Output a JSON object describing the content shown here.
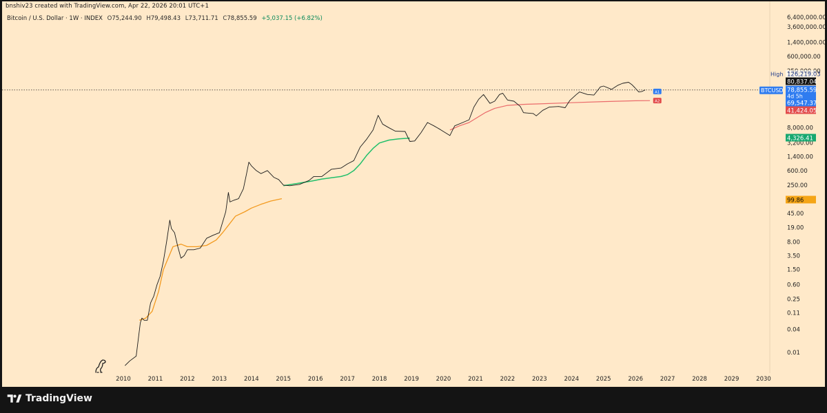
{
  "header": {
    "credit": "bnshiv23 created with TradingView.com, Apr 22, 2026 20:01 UTC+1",
    "symbol_title": "Bitcoin / U.S. Dollar · 1W · INDEX",
    "open_label": "O",
    "open": "75,244.90",
    "high_label": "H",
    "high": "79,498.43",
    "low_label": "L",
    "low": "73,711.71",
    "close_label": "C",
    "close": "78,855.59",
    "change": "+5,037.15 (+6.82%)"
  },
  "footer": {
    "brand": "TradingView"
  },
  "chart_data": {
    "type": "line",
    "title": "Bitcoin / U.S. Dollar · 1W · INDEX",
    "yscale": "log",
    "ylim": [
      0.004,
      6000000
    ],
    "xlim": [
      2009.75,
      2030.3
    ],
    "x_ticks": [
      "2010",
      "2011",
      "2012",
      "2013",
      "2014",
      "2015",
      "2016",
      "2017",
      "2018",
      "2019",
      "2020",
      "2021",
      "2022",
      "2023",
      "2024",
      "2025",
      "2026",
      "2027",
      "2028",
      "2029",
      "2030"
    ],
    "y_ticks": [
      {
        "v": 6400000,
        "label": "6,400,000.00"
      },
      {
        "v": 3600000,
        "label": "3,600,000.00"
      },
      {
        "v": 1400000,
        "label": "1,400,000.00"
      },
      {
        "v": 600000,
        "label": "600,000.00"
      },
      {
        "v": 250000,
        "label": "250,000.00"
      },
      {
        "v": 8000,
        "label": "8,000.00"
      },
      {
        "v": 3200,
        "label": "3,200.00"
      },
      {
        "v": 1400,
        "label": "1,400.00"
      },
      {
        "v": 600,
        "label": "600.00"
      },
      {
        "v": 250,
        "label": "250.00"
      },
      {
        "v": 45,
        "label": "45.00"
      },
      {
        "v": 19,
        "label": "19.00"
      },
      {
        "v": 8,
        "label": "8.00"
      },
      {
        "v": 3.5,
        "label": "3.50"
      },
      {
        "v": 1.5,
        "label": "1.50"
      },
      {
        "v": 0.6,
        "label": "0.60"
      },
      {
        "v": 0.25,
        "label": "0.25"
      },
      {
        "v": 0.11,
        "label": "0.11"
      },
      {
        "v": 0.04,
        "label": "0.04"
      },
      {
        "v": 0.01,
        "label": "0.01"
      }
    ],
    "price_series": {
      "name": "BTCUSD",
      "color": "#1a1a1a",
      "points": [
        [
          2010.05,
          0.0045
        ],
        [
          2010.2,
          0.006
        ],
        [
          2010.4,
          0.008
        ],
        [
          2010.53,
          0.06
        ],
        [
          2010.58,
          0.08
        ],
        [
          2010.65,
          0.07
        ],
        [
          2010.75,
          0.07
        ],
        [
          2010.85,
          0.2
        ],
        [
          2010.95,
          0.3
        ],
        [
          2011.05,
          0.6
        ],
        [
          2011.15,
          1.0
        ],
        [
          2011.25,
          2.5
        ],
        [
          2011.35,
          8
        ],
        [
          2011.45,
          30
        ],
        [
          2011.5,
          18
        ],
        [
          2011.6,
          14
        ],
        [
          2011.7,
          6
        ],
        [
          2011.8,
          3
        ],
        [
          2011.9,
          3.5
        ],
        [
          2012.0,
          5
        ],
        [
          2012.2,
          5
        ],
        [
          2012.4,
          5.5
        ],
        [
          2012.6,
          10
        ],
        [
          2012.8,
          12
        ],
        [
          2013.0,
          14
        ],
        [
          2013.2,
          50
        ],
        [
          2013.28,
          160
        ],
        [
          2013.33,
          90
        ],
        [
          2013.45,
          100
        ],
        [
          2013.6,
          110
        ],
        [
          2013.75,
          200
        ],
        [
          2013.85,
          500
        ],
        [
          2013.92,
          1000
        ],
        [
          2014.0,
          800
        ],
        [
          2014.15,
          600
        ],
        [
          2014.3,
          500
        ],
        [
          2014.5,
          600
        ],
        [
          2014.7,
          400
        ],
        [
          2014.85,
          350
        ],
        [
          2015.0,
          250
        ],
        [
          2015.2,
          240
        ],
        [
          2015.5,
          260
        ],
        [
          2015.8,
          330
        ],
        [
          2015.95,
          420
        ],
        [
          2016.2,
          420
        ],
        [
          2016.5,
          650
        ],
        [
          2016.8,
          700
        ],
        [
          2017.0,
          900
        ],
        [
          2017.2,
          1100
        ],
        [
          2017.4,
          2500
        ],
        [
          2017.6,
          4000
        ],
        [
          2017.8,
          7000
        ],
        [
          2017.96,
          17000
        ],
        [
          2018.1,
          10000
        ],
        [
          2018.3,
          8000
        ],
        [
          2018.5,
          6500
        ],
        [
          2018.8,
          6400
        ],
        [
          2018.95,
          3500
        ],
        [
          2019.1,
          3600
        ],
        [
          2019.3,
          6000
        ],
        [
          2019.5,
          11000
        ],
        [
          2019.7,
          9000
        ],
        [
          2019.9,
          7200
        ],
        [
          2020.2,
          5000
        ],
        [
          2020.35,
          9000
        ],
        [
          2020.6,
          11000
        ],
        [
          2020.8,
          13000
        ],
        [
          2020.95,
          28000
        ],
        [
          2021.1,
          45000
        ],
        [
          2021.25,
          60000
        ],
        [
          2021.45,
          35000
        ],
        [
          2021.6,
          40000
        ],
        [
          2021.75,
          60000
        ],
        [
          2021.85,
          65000
        ],
        [
          2022.0,
          43000
        ],
        [
          2022.2,
          40000
        ],
        [
          2022.4,
          29000
        ],
        [
          2022.5,
          20000
        ],
        [
          2022.8,
          19000
        ],
        [
          2022.9,
          16500
        ],
        [
          2023.1,
          23000
        ],
        [
          2023.3,
          28000
        ],
        [
          2023.6,
          29000
        ],
        [
          2023.8,
          27000
        ],
        [
          2023.95,
          42000
        ],
        [
          2024.15,
          60000
        ],
        [
          2024.25,
          70000
        ],
        [
          2024.5,
          60000
        ],
        [
          2024.7,
          58000
        ],
        [
          2024.9,
          95000
        ],
        [
          2025.0,
          100000
        ],
        [
          2025.25,
          82000
        ],
        [
          2025.45,
          105000
        ],
        [
          2025.6,
          118000
        ],
        [
          2025.78,
          126000
        ],
        [
          2025.88,
          110000
        ],
        [
          2025.98,
          90000
        ],
        [
          2026.1,
          70000
        ],
        [
          2026.2,
          72000
        ],
        [
          2026.3,
          78855
        ]
      ]
    },
    "ma_orange": {
      "color": "#f39a1f",
      "points": [
        [
          2010.5,
          0.07
        ],
        [
          2010.7,
          0.08
        ],
        [
          2010.9,
          0.12
        ],
        [
          2011.1,
          0.4
        ],
        [
          2011.25,
          1.5
        ],
        [
          2011.4,
          3
        ],
        [
          2011.55,
          6
        ],
        [
          2011.8,
          7
        ],
        [
          2012.0,
          6
        ],
        [
          2012.3,
          6
        ],
        [
          2012.6,
          6.5
        ],
        [
          2012.9,
          9
        ],
        [
          2013.1,
          14
        ],
        [
          2013.3,
          23
        ],
        [
          2013.5,
          38
        ],
        [
          2013.8,
          50
        ],
        [
          2014.0,
          62
        ],
        [
          2014.3,
          78
        ],
        [
          2014.6,
          95
        ],
        [
          2014.95,
          110
        ]
      ]
    },
    "ma_green": {
      "color": "#1fbf6a",
      "points": [
        [
          2015.0,
          240
        ],
        [
          2015.3,
          265
        ],
        [
          2015.6,
          290
        ],
        [
          2015.9,
          320
        ],
        [
          2016.2,
          360
        ],
        [
          2016.5,
          390
        ],
        [
          2016.8,
          420
        ],
        [
          2017.0,
          470
        ],
        [
          2017.2,
          600
        ],
        [
          2017.4,
          900
        ],
        [
          2017.6,
          1500
        ],
        [
          2017.8,
          2300
        ],
        [
          2018.0,
          3200
        ],
        [
          2018.3,
          3800
        ],
        [
          2018.6,
          4100
        ],
        [
          2018.95,
          4300
        ]
      ]
    },
    "ma_red": {
      "color": "#ea6a6a",
      "points": [
        [
          2020.2,
          7000
        ],
        [
          2020.5,
          9000
        ],
        [
          2020.8,
          11000
        ],
        [
          2021.0,
          14000
        ],
        [
          2021.3,
          20000
        ],
        [
          2021.6,
          26000
        ],
        [
          2022.0,
          31000
        ],
        [
          2022.5,
          33000
        ],
        [
          2023.0,
          34000
        ],
        [
          2024.0,
          36500
        ],
        [
          2025.0,
          39000
        ],
        [
          2026.0,
          41000
        ],
        [
          2026.45,
          41424
        ]
      ]
    },
    "price_labels": [
      {
        "label": "High",
        "value": "126,219.03",
        "v": 126219,
        "style": "high"
      },
      {
        "label": "",
        "value": "80,837.04",
        "v": 80837,
        "style": "dark"
      },
      {
        "label": "",
        "value": "78,855.59",
        "v": 78855,
        "style": "blue",
        "sub": "4d 5h"
      },
      {
        "label": "",
        "value": "69,547.37",
        "v": 69547,
        "style": "blue"
      },
      {
        "label": "",
        "value": "41,424.05",
        "v": 41424,
        "style": "red"
      },
      {
        "label": "",
        "value": "4,326.41",
        "v": 4326,
        "style": "green"
      },
      {
        "label": "",
        "value": "99.86",
        "v": 99.86,
        "style": "orange"
      }
    ],
    "symbol_tag": "BTCUSD",
    "alerts": [
      {
        "label": "A1",
        "x": 2026.55,
        "v": 72000,
        "color": "#2f7cf0"
      },
      {
        "label": "A2",
        "x": 2026.55,
        "v": 41424,
        "color": "#e24b4b"
      }
    ],
    "current_price_line": 78855,
    "colors": {
      "background": "#ffe9c9",
      "frame": "#141414",
      "blue": "#2f7cf0",
      "red": "#e24b4b",
      "green": "#18a870",
      "orange": "#f5a516"
    }
  }
}
